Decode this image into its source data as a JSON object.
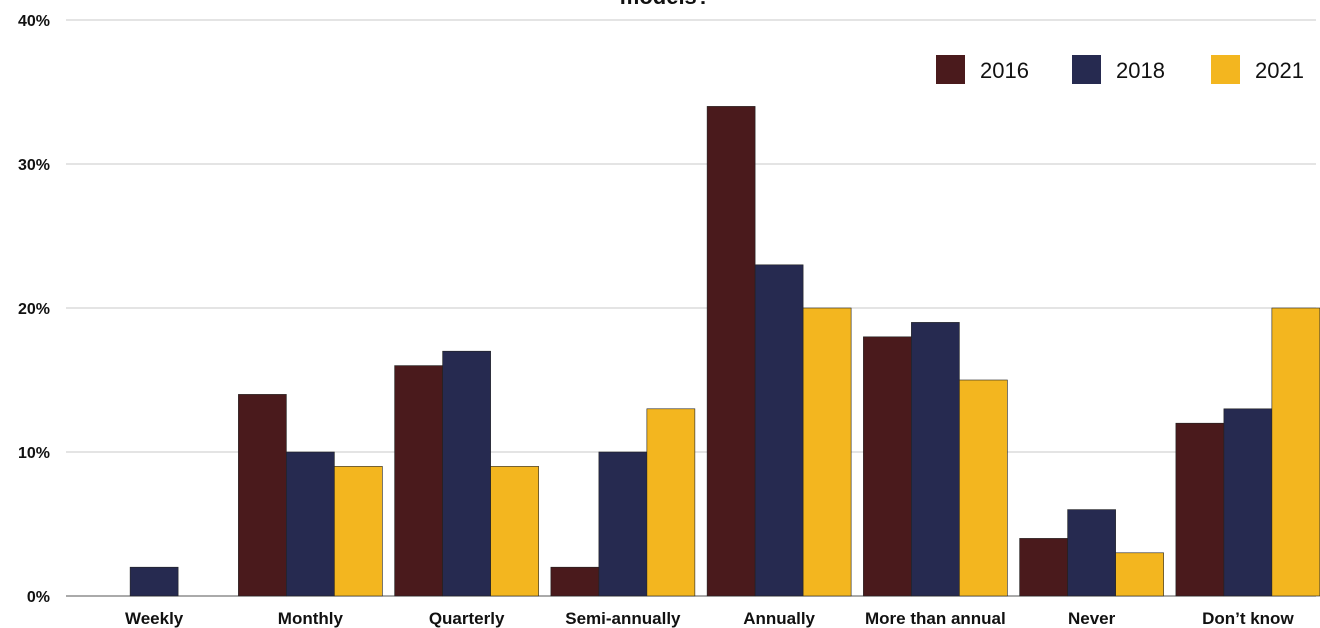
{
  "chart_data": {
    "type": "bar",
    "title": "models?",
    "xlabel": "",
    "ylabel": "",
    "ylim": [
      0,
      40
    ],
    "yticks": [
      0,
      10,
      20,
      30,
      40
    ],
    "ytick_labels": [
      "0%",
      "10%",
      "20%",
      "30%",
      "40%"
    ],
    "grid": true,
    "legend_position": "top-right",
    "categories": [
      "Weekly",
      "Monthly",
      "Quarterly",
      "Semi-annually",
      "Annually",
      "More than annual",
      "Never",
      "Don’t know"
    ],
    "series": [
      {
        "name": "2016",
        "color": "#4a1a1c",
        "values": [
          0,
          14,
          16,
          2,
          34,
          18,
          4,
          12
        ]
      },
      {
        "name": "2018",
        "color": "#262a50",
        "values": [
          2,
          10,
          17,
          10,
          23,
          19,
          6,
          13
        ]
      },
      {
        "name": "2021",
        "color": "#f3b61f",
        "values": [
          0,
          9,
          9,
          13,
          20,
          15,
          3,
          20
        ]
      }
    ]
  }
}
